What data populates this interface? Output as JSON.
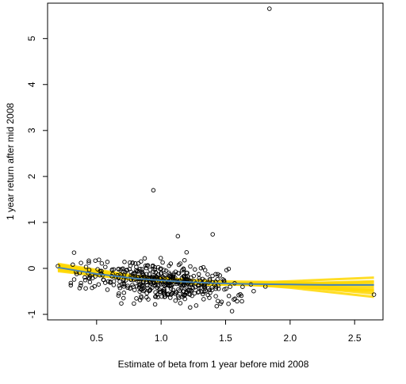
{
  "chart_data": {
    "type": "scatter",
    "title": "",
    "xlabel": "Estimate of beta from 1 year before mid 2008",
    "ylabel": "1 year return after mid 2008",
    "xlim": [
      0.12,
      2.72
    ],
    "ylim": [
      -1.12,
      5.77
    ],
    "x_ticks": [
      0.5,
      1.0,
      1.5,
      2.0,
      2.5
    ],
    "x_tick_labels": [
      "0.5",
      "1.0",
      "1.5",
      "2.0",
      "2.5"
    ],
    "y_ticks": [
      -1,
      0,
      1,
      2,
      3,
      4,
      5
    ],
    "y_tick_labels": [
      "-1",
      "0",
      "1",
      "2",
      "3",
      "4",
      "5"
    ],
    "grid": false,
    "point_style": "open-circle",
    "point_color": "#000000",
    "smooth_band_color": "#FFD700",
    "smooth_line_color": "#4682B4",
    "highlighted_points": [
      {
        "x": 1.84,
        "y": 5.65
      },
      {
        "x": 0.94,
        "y": 1.7
      },
      {
        "x": 1.13,
        "y": 0.7
      },
      {
        "x": 1.4,
        "y": 0.74
      },
      {
        "x": 2.65,
        "y": -0.57
      },
      {
        "x": 1.55,
        "y": -0.93
      },
      {
        "x": 0.2,
        "y": 0.05
      }
    ],
    "cluster": {
      "n_points": 460,
      "x_center": 1.0,
      "x_spread": 0.3,
      "y_intercept": -0.05,
      "y_slope": -0.25,
      "y_spread": 0.2
    },
    "smooth_line": {
      "x": [
        0.2,
        0.5,
        0.8,
        1.1,
        1.4,
        1.7,
        2.0,
        2.3,
        2.65
      ],
      "y": [
        0.02,
        -0.12,
        -0.22,
        -0.28,
        -0.32,
        -0.34,
        -0.35,
        -0.36,
        -0.36
      ]
    },
    "bootstrap_lines": [
      {
        "x": [
          0.2,
          0.8,
          1.4,
          2.0,
          2.65
        ],
        "y": [
          0.06,
          -0.18,
          -0.3,
          -0.38,
          -0.55
        ]
      },
      {
        "x": [
          0.2,
          0.8,
          1.4,
          2.0,
          2.65
        ],
        "y": [
          -0.02,
          -0.24,
          -0.34,
          -0.28,
          -0.2
        ]
      },
      {
        "x": [
          0.2,
          0.8,
          1.4,
          2.0,
          2.65
        ],
        "y": [
          0.1,
          -0.16,
          -0.29,
          -0.42,
          -0.62
        ]
      },
      {
        "x": [
          0.2,
          0.8,
          1.4,
          2.0,
          2.65
        ],
        "y": [
          -0.06,
          -0.25,
          -0.36,
          -0.33,
          -0.28
        ]
      },
      {
        "x": [
          0.2,
          0.8,
          1.4,
          2.0,
          2.65
        ],
        "y": [
          0.03,
          -0.2,
          -0.31,
          -0.36,
          -0.45
        ]
      },
      {
        "x": [
          0.2,
          0.8,
          1.4,
          2.0,
          2.65
        ],
        "y": [
          0.0,
          -0.22,
          -0.33,
          -0.4,
          -0.5
        ]
      },
      {
        "x": [
          0.2,
          0.8,
          1.4,
          2.0,
          2.65
        ],
        "y": [
          0.08,
          -0.19,
          -0.28,
          -0.3,
          -0.35
        ]
      },
      {
        "x": [
          0.2,
          0.8,
          1.4,
          2.0,
          2.65
        ],
        "y": [
          -0.04,
          -0.23,
          -0.35,
          -0.37,
          -0.4
        ]
      },
      {
        "x": [
          0.2,
          0.8,
          1.4,
          2.0,
          2.65
        ],
        "y": [
          0.05,
          -0.21,
          -0.32,
          -0.34,
          -0.3
        ]
      },
      {
        "x": [
          0.2,
          0.8,
          1.4,
          2.0,
          2.65
        ],
        "y": [
          -0.01,
          -0.22,
          -0.31,
          -0.39,
          -0.48
        ]
      }
    ]
  }
}
